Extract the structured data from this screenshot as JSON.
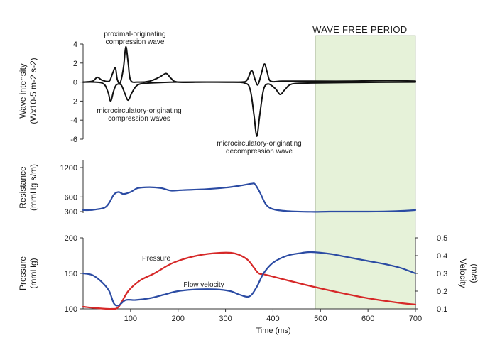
{
  "chart_data": [
    {
      "type": "line",
      "panel": "wave-intensity",
      "ylabel_line1": "Wave intensity",
      "ylabel_line2": "(Wx10-5 m-2 s-2)",
      "xlim": [
        0,
        700
      ],
      "ylim": [
        -6,
        4
      ],
      "yticks": [
        4,
        2,
        0,
        -2,
        -4,
        -6
      ],
      "ytick_labels": [
        "4",
        "2",
        "0",
        "-2",
        "-4",
        "-6"
      ],
      "shaded_region": {
        "x0": 490,
        "x1": 700,
        "label": "WAVE FREE PERIOD",
        "color": "#e6f2d9"
      },
      "annotations": [
        {
          "lines": [
            "proximal-originating",
            "compression wave"
          ]
        },
        {
          "lines": [
            "microcirculatory-originating",
            "compression waves"
          ]
        },
        {
          "lines": [
            "microcirculatory-originating",
            "decompression wave"
          ]
        }
      ],
      "series": [
        {
          "color": "#111111",
          "points": [
            [
              0,
              0
            ],
            [
              20,
              0.1
            ],
            [
              30,
              0.5
            ],
            [
              40,
              0.2
            ],
            [
              55,
              0.1
            ],
            [
              62,
              0.9
            ],
            [
              68,
              1.5
            ],
            [
              72,
              0.3
            ],
            [
              78,
              -0.1
            ],
            [
              85,
              1.5
            ],
            [
              90,
              3.7
            ],
            [
              95,
              2
            ],
            [
              100,
              0.2
            ],
            [
              115,
              0
            ],
            [
              140,
              0.1
            ],
            [
              160,
              0.5
            ],
            [
              175,
              0.9
            ],
            [
              185,
              0.4
            ],
            [
              200,
              0
            ],
            [
              260,
              0
            ],
            [
              330,
              0
            ],
            [
              345,
              0.2
            ],
            [
              355,
              1.2
            ],
            [
              362,
              0.3
            ],
            [
              368,
              -0.3
            ],
            [
              375,
              0.8
            ],
            [
              382,
              1.9
            ],
            [
              388,
              1
            ],
            [
              395,
              0.1
            ],
            [
              420,
              0.1
            ],
            [
              480,
              0.1
            ],
            [
              560,
              0.1
            ],
            [
              640,
              0.15
            ],
            [
              700,
              0.1
            ]
          ]
        },
        {
          "color": "#111111",
          "points": [
            [
              0,
              0
            ],
            [
              40,
              -0.1
            ],
            [
              52,
              -1
            ],
            [
              58,
              -2
            ],
            [
              64,
              -1
            ],
            [
              70,
              -0.3
            ],
            [
              80,
              -0.3
            ],
            [
              88,
              -1.2
            ],
            [
              95,
              -1.9
            ],
            [
              103,
              -1.1
            ],
            [
              115,
              -0.3
            ],
            [
              140,
              -0.1
            ],
            [
              200,
              0
            ],
            [
              300,
              0
            ],
            [
              340,
              -0.1
            ],
            [
              352,
              -0.8
            ],
            [
              360,
              -3.5
            ],
            [
              366,
              -5.7
            ],
            [
              372,
              -3.5
            ],
            [
              380,
              -0.8
            ],
            [
              390,
              -0.2
            ],
            [
              405,
              -0.7
            ],
            [
              415,
              -1.3
            ],
            [
              425,
              -0.8
            ],
            [
              440,
              -0.2
            ],
            [
              480,
              -0.1
            ],
            [
              560,
              -0.05
            ],
            [
              700,
              0
            ]
          ]
        }
      ]
    },
    {
      "type": "line",
      "panel": "resistance",
      "ylabel_line1": "Resistance",
      "ylabel_line2": "(mmHg s/m)",
      "xlim": [
        0,
        700
      ],
      "ylim": [
        300,
        1200
      ],
      "yticks": [
        1200,
        600,
        300
      ],
      "ytick_labels": [
        "1200",
        "600",
        "300"
      ],
      "series": [
        {
          "color": "#2b4ba3",
          "points": [
            [
              0,
              330
            ],
            [
              20,
              335
            ],
            [
              45,
              380
            ],
            [
              55,
              480
            ],
            [
              65,
              650
            ],
            [
              75,
              700
            ],
            [
              85,
              660
            ],
            [
              100,
              700
            ],
            [
              115,
              780
            ],
            [
              140,
              800
            ],
            [
              165,
              780
            ],
            [
              185,
              730
            ],
            [
              210,
              740
            ],
            [
              260,
              760
            ],
            [
              300,
              790
            ],
            [
              330,
              830
            ],
            [
              355,
              870
            ],
            [
              362,
              860
            ],
            [
              372,
              700
            ],
            [
              385,
              450
            ],
            [
              400,
              350
            ],
            [
              430,
              310
            ],
            [
              480,
              295
            ],
            [
              520,
              300
            ],
            [
              600,
              300
            ],
            [
              660,
              310
            ],
            [
              700,
              330
            ]
          ]
        }
      ]
    },
    {
      "type": "line",
      "panel": "pressure-velocity",
      "ylabel_line1": "Pressure",
      "ylabel_line2": "(mmHg)",
      "ylabel_right": "Velocity",
      "ylabel_right_unit": "(m/s)",
      "xlabel": "Time (ms)",
      "xlim": [
        0,
        700
      ],
      "xticks": [
        100,
        200,
        300,
        400,
        500,
        600,
        700
      ],
      "xtick_labels": [
        "100",
        "200",
        "300",
        "400",
        "500",
        "600",
        "700"
      ],
      "ylim": [
        100,
        200
      ],
      "yticks": [
        200,
        150,
        100
      ],
      "ytick_labels": [
        "200",
        "150",
        "100"
      ],
      "y2lim": [
        0.1,
        0.5
      ],
      "y2ticks": [
        0.5,
        0.4,
        0.3,
        0.2,
        0.1
      ],
      "y2tick_labels": [
        "0.5",
        "0.4",
        "0.3",
        "0.2",
        "0.1"
      ],
      "series": [
        {
          "name": "Pressure",
          "axis": "left",
          "color": "#d62828",
          "points": [
            [
              0,
              103
            ],
            [
              30,
              101
            ],
            [
              60,
              100
            ],
            [
              75,
              103
            ],
            [
              95,
              125
            ],
            [
              120,
              140
            ],
            [
              150,
              150
            ],
            [
              190,
              165
            ],
            [
              240,
              175
            ],
            [
              290,
              179
            ],
            [
              320,
              178
            ],
            [
              345,
              170
            ],
            [
              360,
              158
            ],
            [
              370,
              150
            ],
            [
              385,
              148
            ],
            [
              420,
              142
            ],
            [
              480,
              132
            ],
            [
              540,
              123
            ],
            [
              600,
              115
            ],
            [
              660,
              109
            ],
            [
              700,
              106
            ]
          ]
        },
        {
          "name": "Flow velocity",
          "axis": "right",
          "color": "#2b4ba3",
          "points": [
            [
              0,
              0.3
            ],
            [
              20,
              0.29
            ],
            [
              40,
              0.25
            ],
            [
              55,
              0.2
            ],
            [
              65,
              0.13
            ],
            [
              75,
              0.12
            ],
            [
              90,
              0.15
            ],
            [
              110,
              0.15
            ],
            [
              140,
              0.16
            ],
            [
              170,
              0.18
            ],
            [
              200,
              0.2
            ],
            [
              240,
              0.21
            ],
            [
              280,
              0.21
            ],
            [
              310,
              0.2
            ],
            [
              330,
              0.18
            ],
            [
              350,
              0.17
            ],
            [
              365,
              0.22
            ],
            [
              380,
              0.3
            ],
            [
              400,
              0.36
            ],
            [
              430,
              0.4
            ],
            [
              460,
              0.415
            ],
            [
              480,
              0.42
            ],
            [
              520,
              0.41
            ],
            [
              560,
              0.39
            ],
            [
              600,
              0.37
            ],
            [
              640,
              0.35
            ],
            [
              670,
              0.33
            ],
            [
              700,
              0.3
            ]
          ]
        }
      ]
    }
  ]
}
